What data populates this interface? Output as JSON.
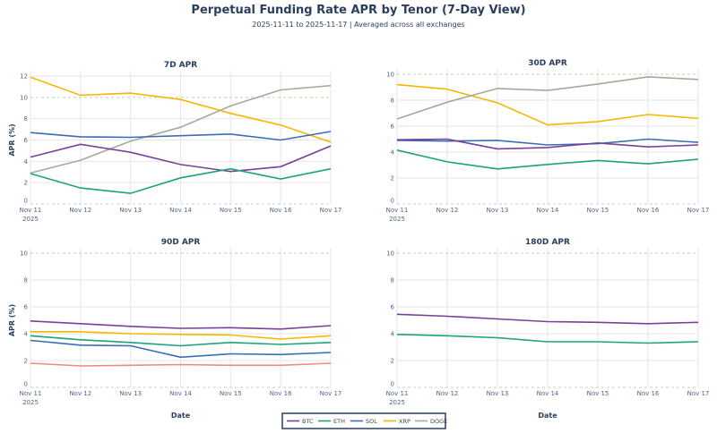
{
  "title": "Perpetual Funding Rate APR by Tenor (7-Day View)",
  "subtitle": "2025-11-11 to 2025-11-17 | Averaged across all exchanges",
  "colors": {
    "BTC": "#7b3f98",
    "ETH": "#1aa37a",
    "SOL": "#3a6db5",
    "XRP": "#f5b800",
    "DOGE": "#a8a89a",
    "unlabeled": "#f08a80"
  },
  "legend": [
    "BTC",
    "ETH",
    "SOL",
    "XRP",
    "DOGE"
  ],
  "chart_data": [
    {
      "type": "line",
      "title": "7D APR",
      "xlabel": "",
      "ylabel": "APR (%)",
      "ylim": [
        0,
        12
      ],
      "yticks": [
        0,
        2,
        4,
        6,
        8,
        10,
        12
      ],
      "categories": [
        "Nov 11",
        "Nov 12",
        "Nov 13",
        "Nov 14",
        "Nov 15",
        "Nov 16",
        "Nov 17"
      ],
      "year_label": "2025",
      "series": [
        {
          "name": "XRP",
          "values": [
            11.9,
            10.2,
            10.4,
            9.8,
            8.5,
            7.4,
            5.8
          ]
        },
        {
          "name": "DOGE",
          "values": [
            2.9,
            4.1,
            5.9,
            7.2,
            9.2,
            10.7,
            11.1
          ]
        },
        {
          "name": "SOL",
          "values": [
            6.7,
            6.3,
            6.25,
            6.4,
            6.55,
            6.0,
            6.8
          ]
        },
        {
          "name": "BTC",
          "values": [
            4.4,
            5.6,
            4.85,
            3.7,
            3.05,
            3.5,
            5.45
          ]
        },
        {
          "name": "ETH",
          "values": [
            2.85,
            1.5,
            1.0,
            2.45,
            3.3,
            2.35,
            3.3
          ]
        }
      ]
    },
    {
      "type": "line",
      "title": "30D APR",
      "xlabel": "",
      "ylabel": "",
      "ylim": [
        0,
        10
      ],
      "yticks": [
        0,
        2,
        4,
        6,
        8,
        10
      ],
      "categories": [
        "Nov 11",
        "Nov 12",
        "Nov 13",
        "Nov 14",
        "Nov 15",
        "Nov 16",
        "Nov 17"
      ],
      "year_label": "2025",
      "series": [
        {
          "name": "XRP",
          "values": [
            9.2,
            8.85,
            7.8,
            6.1,
            6.35,
            6.9,
            6.6
          ]
        },
        {
          "name": "DOGE",
          "values": [
            6.55,
            7.85,
            8.9,
            8.75,
            9.25,
            9.8,
            9.6
          ]
        },
        {
          "name": "SOL",
          "values": [
            4.9,
            4.85,
            4.9,
            4.55,
            4.65,
            5.0,
            4.75
          ]
        },
        {
          "name": "BTC",
          "values": [
            4.95,
            5.0,
            4.25,
            4.35,
            4.7,
            4.4,
            4.55
          ]
        },
        {
          "name": "ETH",
          "values": [
            4.15,
            3.25,
            2.7,
            3.05,
            3.35,
            3.1,
            3.45
          ]
        }
      ]
    },
    {
      "type": "line",
      "title": "90D APR",
      "xlabel": "Date",
      "ylabel": "APR (%)",
      "ylim": [
        0,
        10
      ],
      "yticks": [
        0,
        2,
        4,
        6,
        8,
        10
      ],
      "categories": [
        "Nov 11",
        "Nov 12",
        "Nov 13",
        "Nov 14",
        "Nov 15",
        "Nov 16",
        "Nov 17"
      ],
      "year_label": "2025",
      "series": [
        {
          "name": "BTC",
          "values": [
            4.95,
            4.75,
            4.55,
            4.4,
            4.45,
            4.35,
            4.6
          ]
        },
        {
          "name": "XRP",
          "values": [
            4.15,
            4.15,
            4.0,
            3.95,
            3.9,
            3.6,
            3.85
          ]
        },
        {
          "name": "ETH",
          "values": [
            3.85,
            3.55,
            3.35,
            3.1,
            3.35,
            3.2,
            3.35
          ]
        },
        {
          "name": "SOL",
          "values": [
            3.5,
            3.15,
            3.1,
            2.25,
            2.5,
            2.45,
            2.6
          ]
        },
        {
          "name": "unlabeled",
          "values": [
            1.8,
            1.6,
            1.65,
            1.7,
            1.65,
            1.65,
            1.8
          ]
        }
      ]
    },
    {
      "type": "line",
      "title": "180D APR",
      "xlabel": "Date",
      "ylabel": "",
      "ylim": [
        0,
        10
      ],
      "yticks": [
        0,
        2,
        4,
        6,
        8,
        10
      ],
      "categories": [
        "Nov 11",
        "Nov 12",
        "Nov 13",
        "Nov 14",
        "Nov 15",
        "Nov 16",
        "Nov 17"
      ],
      "year_label": "2025",
      "series": [
        {
          "name": "BTC",
          "values": [
            5.45,
            5.3,
            5.1,
            4.9,
            4.85,
            4.75,
            4.85
          ]
        },
        {
          "name": "ETH",
          "values": [
            3.95,
            3.85,
            3.7,
            3.4,
            3.4,
            3.3,
            3.4
          ]
        }
      ]
    }
  ]
}
